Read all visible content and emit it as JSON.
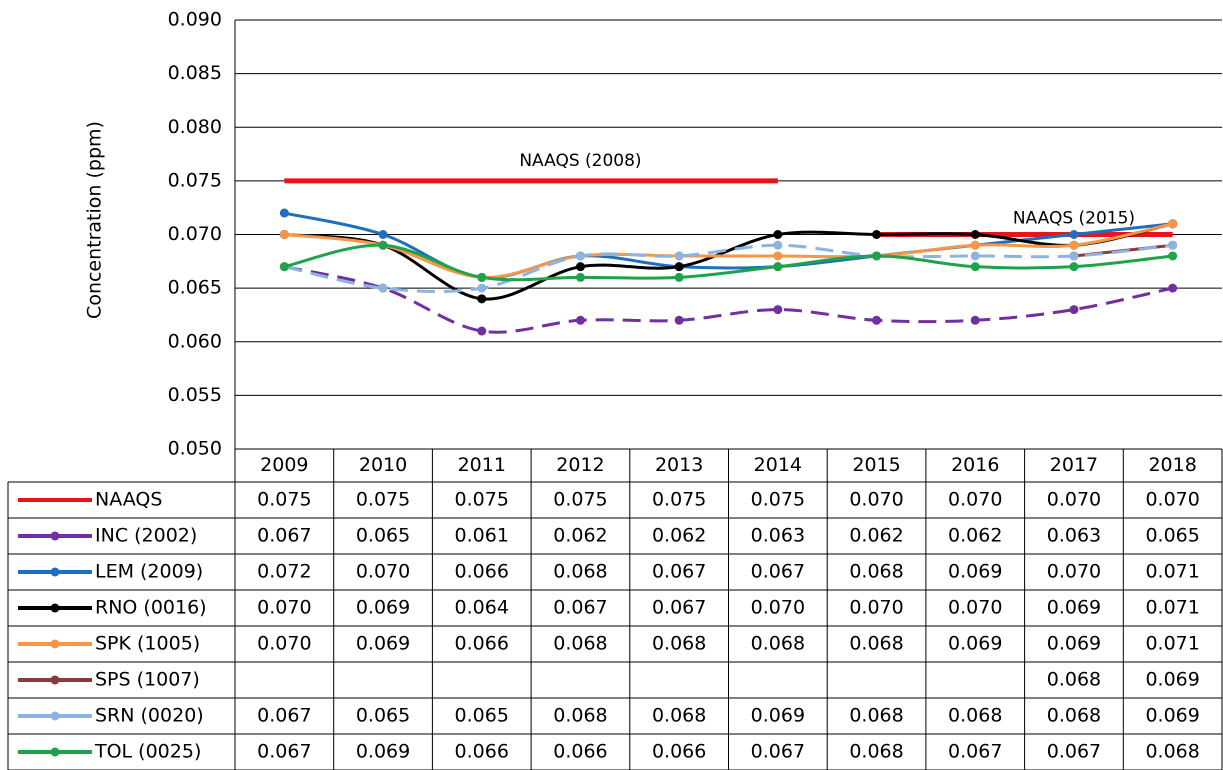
{
  "chart_data": {
    "type": "line",
    "y_label": "Concentration (ppm)",
    "categories": [
      "2009",
      "2010",
      "2011",
      "2012",
      "2013",
      "2014",
      "2015",
      "2016",
      "2017",
      "2018"
    ],
    "ylim": [
      0.05,
      0.09
    ],
    "yticks": [
      {
        "value": 0.05,
        "label": "0.050"
      },
      0.055,
      {
        "value": 0.06,
        "label": "0.060"
      },
      0.065,
      {
        "value": 0.07,
        "label": "0.070"
      },
      0.075,
      {
        "value": 0.08,
        "label": "0.080"
      },
      0.085,
      {
        "value": 0.09,
        "label": "0.090"
      }
    ],
    "grid": true,
    "annotations": [
      "NAAQS (2008)",
      "NAAQS (2015)"
    ],
    "series": [
      {
        "name": "NAAQS",
        "color": "#e8141a",
        "markers": false,
        "dashed": false,
        "values": [
          0.075,
          0.075,
          0.075,
          0.075,
          0.075,
          0.075,
          0.07,
          0.07,
          0.07,
          0.07
        ],
        "value_labels": [
          "0.075",
          "0.075",
          "0.075",
          "0.075",
          "0.075",
          "0.075",
          "0.070",
          "0.070",
          "0.070",
          "0.070"
        ]
      },
      {
        "name": "INC (2002)",
        "color": "#7030a0",
        "markers": true,
        "dashed": true,
        "values": [
          0.067,
          0.065,
          0.061,
          0.062,
          0.062,
          0.063,
          0.062,
          0.062,
          0.063,
          0.065
        ],
        "value_labels": [
          "0.067",
          "0.065",
          "0.061",
          "0.062",
          "0.062",
          "0.063",
          "0.062",
          "0.062",
          "0.063",
          "0.065"
        ]
      },
      {
        "name": "LEM (2009)",
        "color": "#1f6fbf",
        "markers": true,
        "dashed": false,
        "values": [
          0.072,
          0.07,
          0.066,
          0.068,
          0.067,
          0.067,
          0.068,
          0.069,
          0.07,
          0.071
        ],
        "value_labels": [
          "0.072",
          "0.070",
          "0.066",
          "0.068",
          "0.067",
          "0.067",
          "0.068",
          "0.069",
          "0.070",
          "0.071"
        ]
      },
      {
        "name": "RNO (0016)",
        "color": "#000000",
        "markers": true,
        "dashed": false,
        "values": [
          0.07,
          0.069,
          0.064,
          0.067,
          0.067,
          0.07,
          0.07,
          0.07,
          0.069,
          0.071
        ],
        "value_labels": [
          "0.070",
          "0.069",
          "0.064",
          "0.067",
          "0.067",
          "0.070",
          "0.070",
          "0.070",
          "0.069",
          "0.071"
        ]
      },
      {
        "name": "SPK (1005)",
        "color": "#f79646",
        "markers": true,
        "dashed": false,
        "values": [
          0.07,
          0.069,
          0.066,
          0.068,
          0.068,
          0.068,
          0.068,
          0.069,
          0.069,
          0.071
        ],
        "value_labels": [
          "0.070",
          "0.069",
          "0.066",
          "0.068",
          "0.068",
          "0.068",
          "0.068",
          "0.069",
          "0.069",
          "0.071"
        ]
      },
      {
        "name": "SPS (1007)",
        "color": "#8b3a3a",
        "markers": true,
        "dashed": false,
        "values": [
          null,
          null,
          null,
          null,
          null,
          null,
          null,
          null,
          0.068,
          0.069
        ],
        "value_labels": [
          null,
          null,
          null,
          null,
          null,
          null,
          null,
          null,
          "0.068",
          "0.069"
        ]
      },
      {
        "name": "SRN (0020)",
        "color": "#8db3e2",
        "markers": true,
        "dashed": true,
        "values": [
          0.067,
          0.065,
          0.065,
          0.068,
          0.068,
          0.069,
          0.068,
          0.068,
          0.068,
          0.069
        ],
        "value_labels": [
          "0.067",
          "0.065",
          "0.065",
          "0.068",
          "0.068",
          "0.069",
          "0.068",
          "0.068",
          "0.068",
          "0.069"
        ]
      },
      {
        "name": "TOL (0025)",
        "color": "#1ea34a",
        "markers": true,
        "dashed": false,
        "values": [
          0.067,
          0.069,
          0.066,
          0.066,
          0.066,
          0.067,
          0.068,
          0.067,
          0.067,
          0.068
        ],
        "value_labels": [
          "0.067",
          "0.069",
          "0.066",
          "0.066",
          "0.066",
          "0.067",
          "0.068",
          "0.067",
          "0.067",
          "0.068"
        ]
      }
    ]
  }
}
